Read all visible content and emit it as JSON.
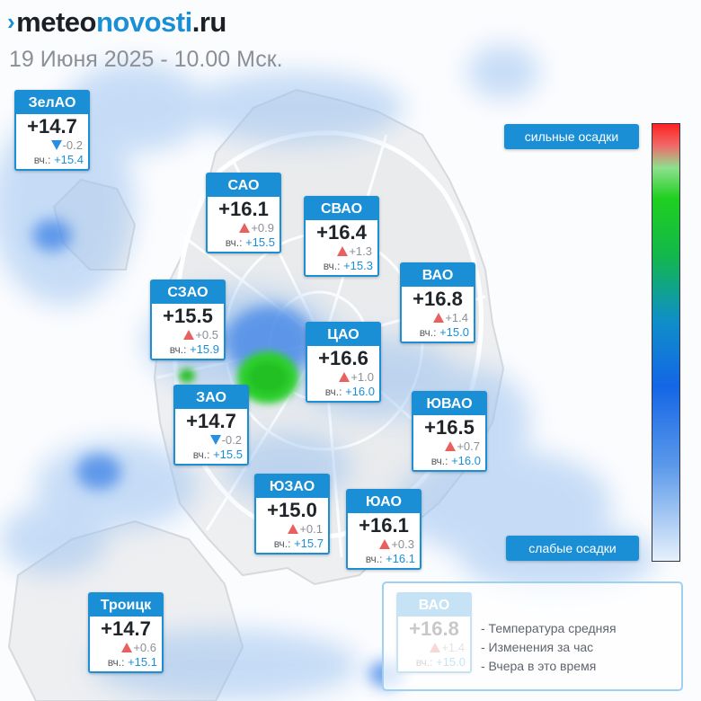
{
  "header": {
    "logo_mark": "›",
    "logo_part1": "meteo",
    "logo_part2": "novosti",
    "logo_part3": ".ru",
    "date_line": "19 Июня 2025 - 10.00 Мск."
  },
  "colors": {
    "accent": "#1a8fd6",
    "arrow_up": "#e8615f",
    "arrow_down": "#2a8ee0",
    "precip_light": "#9cc3f0",
    "precip_medium": "#2b76e3",
    "precip_heavy": "#18c418"
  },
  "scale": {
    "top_label": "сильные осадки",
    "bottom_label": "слабые осадки"
  },
  "districts": [
    {
      "name": "ЗелАО",
      "temp": "+14.7",
      "dir": "down",
      "change": "-0.2",
      "yest_label": "вч.:",
      "yest": "+15.4"
    },
    {
      "name": "САО",
      "temp": "+16.1",
      "dir": "up",
      "change": "+0.9",
      "yest_label": "вч.:",
      "yest": "+15.5"
    },
    {
      "name": "СВАО",
      "temp": "+16.4",
      "dir": "up",
      "change": "+1.3",
      "yest_label": "вч.:",
      "yest": "+15.3"
    },
    {
      "name": "ВАО",
      "temp": "+16.8",
      "dir": "up",
      "change": "+1.4",
      "yest_label": "вч.:",
      "yest": "+15.0"
    },
    {
      "name": "СЗАО",
      "temp": "+15.5",
      "dir": "up",
      "change": "+0.5",
      "yest_label": "вч.:",
      "yest": "+15.9"
    },
    {
      "name": "ЦАО",
      "temp": "+16.6",
      "dir": "up",
      "change": "+1.0",
      "yest_label": "вч.:",
      "yest": "+16.0"
    },
    {
      "name": "ЗАО",
      "temp": "+14.7",
      "dir": "down",
      "change": "-0.2",
      "yest_label": "вч.:",
      "yest": "+15.5"
    },
    {
      "name": "ЮВАО",
      "temp": "+16.5",
      "dir": "up",
      "change": "+0.7",
      "yest_label": "вч.:",
      "yest": "+16.0"
    },
    {
      "name": "ЮЗАО",
      "temp": "+15.0",
      "dir": "up",
      "change": "+0.1",
      "yest_label": "вч.:",
      "yest": "+15.7"
    },
    {
      "name": "ЮАО",
      "temp": "+16.1",
      "dir": "up",
      "change": "+0.3",
      "yest_label": "вч.:",
      "yest": "+16.1"
    },
    {
      "name": "Троицк",
      "temp": "+14.7",
      "dir": "up",
      "change": "+0.6",
      "yest_label": "вч.:",
      "yest": "+15.1"
    }
  ],
  "legend": {
    "sample": {
      "name": "ВАО",
      "temp": "+16.8",
      "dir": "up",
      "change": "+1.4",
      "yest_label": "вч.:",
      "yest": "+15.0"
    },
    "lines": [
      "- Температура средняя",
      "- Изменения за час",
      "- Вчера в это время"
    ]
  }
}
